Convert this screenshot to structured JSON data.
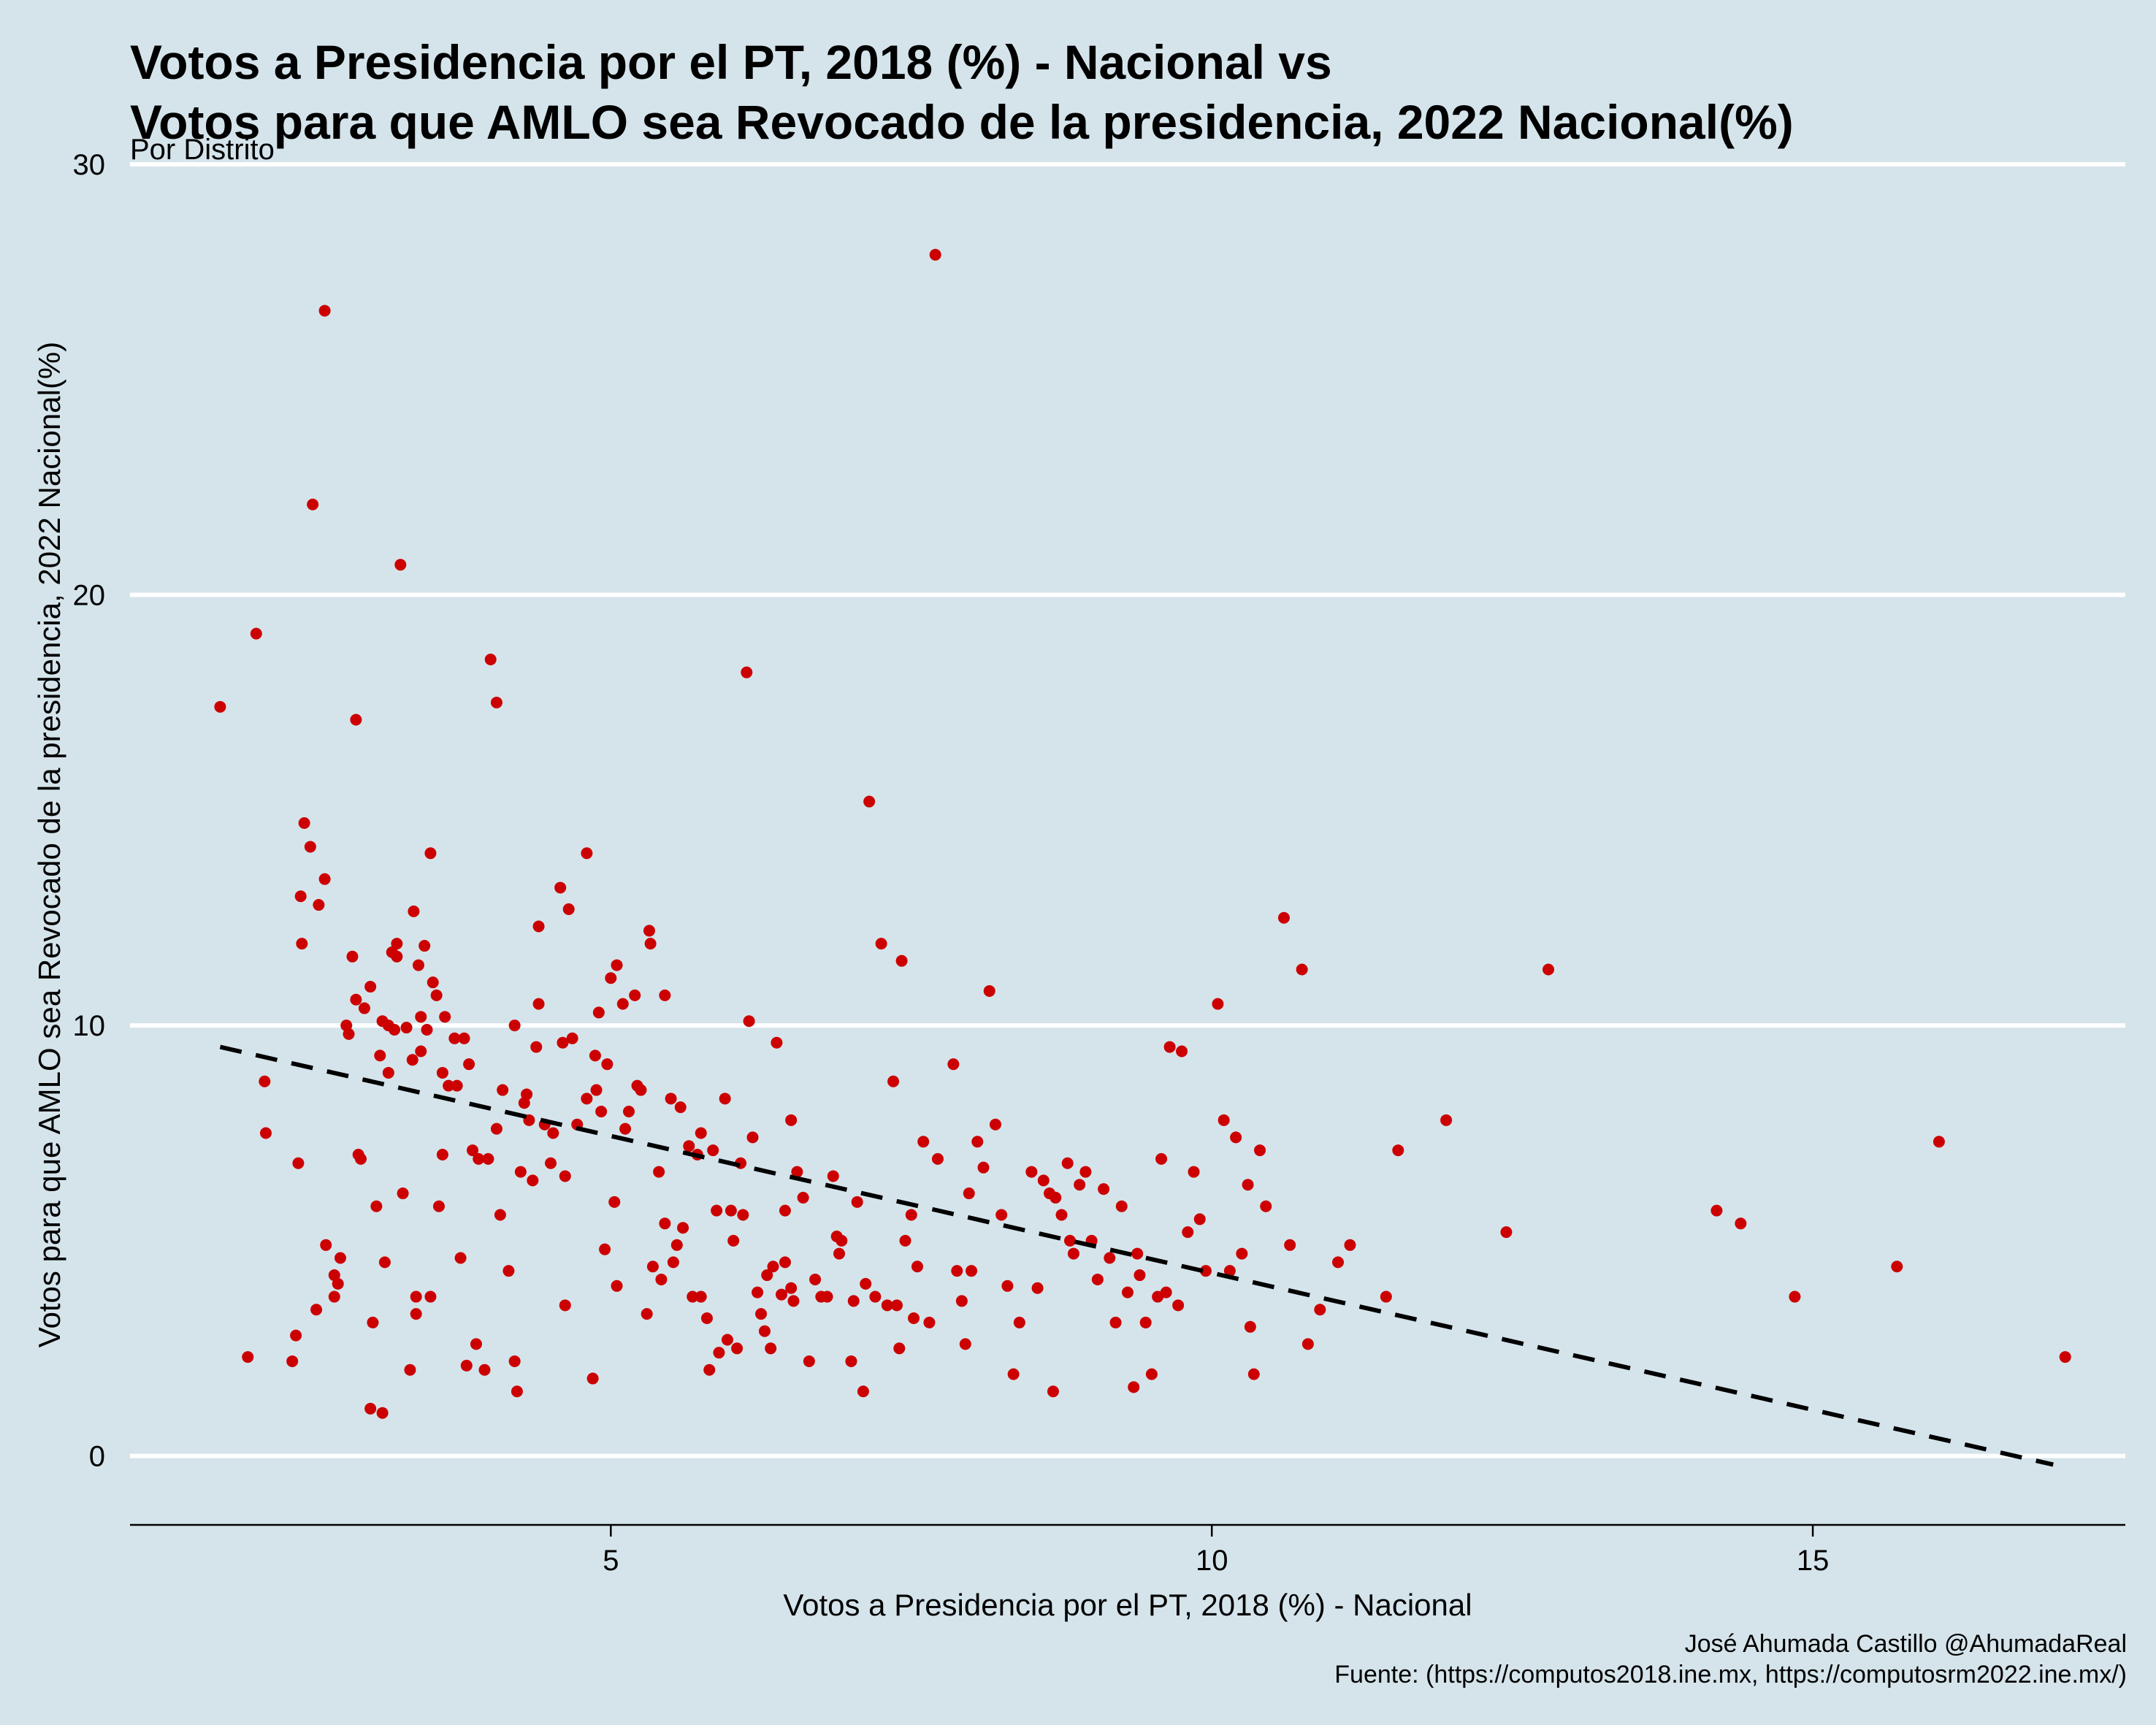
{
  "chart_data": {
    "type": "scatter",
    "title": [
      "Votos a Presidencia por el PT, 2018 (%) - Nacional vs",
      "Votos para que AMLO sea Revocado de la presidencia, 2022 Nacional(%)"
    ],
    "subtitle": "Por Distrito",
    "xlabel": "Votos a Presidencia por el PT, 2018 (%) - Nacional",
    "ylabel": "Votos para que AMLO sea Revocado de la presidencia, 2022 Nacional(%)",
    "xlim": [
      1,
      17.6
    ],
    "ylim": [
      -1.6,
      30
    ],
    "x_ticks": [
      5,
      10,
      15
    ],
    "y_ticks": [
      0,
      10,
      20,
      30
    ],
    "x_tick_labels": [
      "5",
      "10",
      "15"
    ],
    "y_tick_labels": [
      "0",
      "10",
      "20",
      "30"
    ],
    "grid": "horizontal-major",
    "point_color": "#cc0000",
    "trend_line": {
      "style": "dashed",
      "color": "#000000",
      "x": [
        1.75,
        17.0
      ],
      "y": [
        9.5,
        -0.2
      ]
    },
    "points": [
      [
        1.75,
        17.4
      ],
      [
        2.05,
        19.1
      ],
      [
        2.12,
        8.7
      ],
      [
        2.13,
        7.5
      ],
      [
        1.98,
        2.3
      ],
      [
        2.35,
        2.2
      ],
      [
        2.38,
        2.8
      ],
      [
        2.4,
        6.8
      ],
      [
        2.45,
        14.7
      ],
      [
        2.5,
        14.15
      ],
      [
        2.52,
        22.1
      ],
      [
        2.62,
        26.6
      ],
      [
        2.62,
        13.4
      ],
      [
        2.42,
        13.0
      ],
      [
        2.43,
        11.9
      ],
      [
        2.57,
        12.8
      ],
      [
        2.55,
        3.4
      ],
      [
        2.63,
        4.9
      ],
      [
        2.7,
        3.7
      ],
      [
        2.7,
        4.2
      ],
      [
        2.73,
        4.0
      ],
      [
        2.75,
        4.6
      ],
      [
        2.8,
        10.0
      ],
      [
        2.82,
        9.8
      ],
      [
        2.85,
        11.6
      ],
      [
        2.88,
        17.1
      ],
      [
        2.88,
        10.6
      ],
      [
        2.9,
        7.0
      ],
      [
        2.92,
        6.9
      ],
      [
        2.95,
        10.4
      ],
      [
        3.0,
        10.9
      ],
      [
        3.0,
        1.1
      ],
      [
        3.02,
        3.1
      ],
      [
        3.05,
        5.8
      ],
      [
        3.08,
        9.3
      ],
      [
        3.1,
        10.1
      ],
      [
        3.1,
        1.0
      ],
      [
        3.12,
        4.5
      ],
      [
        3.15,
        10.0
      ],
      [
        3.15,
        8.9
      ],
      [
        3.18,
        11.7
      ],
      [
        3.2,
        9.9
      ],
      [
        3.22,
        11.9
      ],
      [
        3.22,
        11.6
      ],
      [
        3.25,
        20.7
      ],
      [
        3.27,
        6.1
      ],
      [
        3.3,
        9.95
      ],
      [
        3.33,
        2.0
      ],
      [
        3.35,
        9.2
      ],
      [
        3.36,
        12.65
      ],
      [
        3.38,
        3.7
      ],
      [
        3.38,
        3.3
      ],
      [
        3.4,
        11.4
      ],
      [
        3.42,
        10.2
      ],
      [
        3.42,
        9.4
      ],
      [
        3.45,
        11.85
      ],
      [
        3.47,
        9.9
      ],
      [
        3.5,
        3.7
      ],
      [
        3.5,
        14.0
      ],
      [
        3.52,
        11.0
      ],
      [
        3.55,
        10.7
      ],
      [
        3.57,
        5.8
      ],
      [
        3.6,
        7.0
      ],
      [
        3.6,
        8.9
      ],
      [
        3.62,
        10.2
      ],
      [
        3.65,
        8.6
      ],
      [
        3.7,
        9.7
      ],
      [
        3.72,
        8.6
      ],
      [
        3.75,
        4.6
      ],
      [
        3.78,
        9.7
      ],
      [
        3.8,
        2.1
      ],
      [
        3.82,
        9.1
      ],
      [
        3.85,
        7.1
      ],
      [
        3.88,
        2.6
      ],
      [
        3.9,
        6.9
      ],
      [
        3.95,
        2.0
      ],
      [
        3.98,
        6.9
      ],
      [
        4.0,
        18.5
      ],
      [
        4.05,
        17.5
      ],
      [
        4.05,
        7.6
      ],
      [
        4.08,
        5.6
      ],
      [
        4.1,
        8.5
      ],
      [
        4.15,
        4.3
      ],
      [
        4.2,
        10.0
      ],
      [
        4.2,
        2.2
      ],
      [
        4.22,
        1.5
      ],
      [
        4.25,
        6.6
      ],
      [
        4.28,
        8.2
      ],
      [
        4.3,
        8.4
      ],
      [
        4.32,
        7.8
      ],
      [
        4.35,
        6.4
      ],
      [
        4.38,
        9.5
      ],
      [
        4.4,
        12.3
      ],
      [
        4.4,
        10.5
      ],
      [
        4.45,
        7.7
      ],
      [
        4.5,
        6.8
      ],
      [
        4.52,
        7.5
      ],
      [
        4.58,
        13.2
      ],
      [
        4.6,
        9.6
      ],
      [
        4.62,
        3.5
      ],
      [
        4.62,
        6.5
      ],
      [
        4.65,
        12.7
      ],
      [
        4.68,
        9.7
      ],
      [
        4.72,
        7.7
      ],
      [
        4.8,
        8.3
      ],
      [
        4.8,
        14.0
      ],
      [
        4.85,
        1.8
      ],
      [
        4.87,
        9.3
      ],
      [
        4.88,
        8.5
      ],
      [
        4.9,
        10.3
      ],
      [
        4.92,
        8.0
      ],
      [
        4.95,
        4.8
      ],
      [
        4.97,
        9.1
      ],
      [
        5.0,
        11.1
      ],
      [
        5.03,
        5.9
      ],
      [
        5.05,
        11.4
      ],
      [
        5.05,
        3.95
      ],
      [
        5.1,
        10.5
      ],
      [
        5.12,
        7.6
      ],
      [
        5.15,
        8.0
      ],
      [
        5.2,
        10.7
      ],
      [
        5.22,
        8.6
      ],
      [
        5.25,
        8.5
      ],
      [
        5.3,
        3.3
      ],
      [
        5.32,
        12.2
      ],
      [
        5.33,
        11.9
      ],
      [
        5.35,
        4.4
      ],
      [
        5.4,
        6.6
      ],
      [
        5.42,
        4.1
      ],
      [
        5.45,
        10.7
      ],
      [
        5.45,
        5.4
      ],
      [
        5.5,
        8.3
      ],
      [
        5.52,
        4.5
      ],
      [
        5.55,
        4.9
      ],
      [
        5.58,
        8.1
      ],
      [
        5.6,
        5.3
      ],
      [
        5.65,
        7.2
      ],
      [
        5.68,
        3.7
      ],
      [
        5.72,
        7.0
      ],
      [
        5.75,
        3.7
      ],
      [
        5.75,
        7.5
      ],
      [
        5.8,
        3.2
      ],
      [
        5.82,
        2.0
      ],
      [
        5.85,
        7.1
      ],
      [
        5.88,
        5.7
      ],
      [
        5.9,
        2.4
      ],
      [
        5.95,
        8.3
      ],
      [
        5.97,
        2.7
      ],
      [
        6.0,
        5.7
      ],
      [
        6.02,
        5.0
      ],
      [
        6.05,
        2.5
      ],
      [
        6.08,
        6.8
      ],
      [
        6.1,
        5.6
      ],
      [
        6.13,
        18.2
      ],
      [
        6.15,
        10.1
      ],
      [
        6.18,
        7.4
      ],
      [
        6.22,
        3.8
      ],
      [
        6.25,
        3.3
      ],
      [
        6.28,
        2.9
      ],
      [
        6.3,
        4.2
      ],
      [
        6.33,
        2.5
      ],
      [
        6.35,
        4.4
      ],
      [
        6.38,
        9.6
      ],
      [
        6.42,
        3.75
      ],
      [
        6.45,
        4.5
      ],
      [
        6.45,
        5.7
      ],
      [
        6.5,
        7.8
      ],
      [
        6.5,
        3.9
      ],
      [
        6.52,
        3.6
      ],
      [
        6.55,
        6.6
      ],
      [
        6.6,
        6.0
      ],
      [
        6.65,
        2.2
      ],
      [
        6.7,
        4.1
      ],
      [
        6.75,
        3.7
      ],
      [
        6.8,
        3.7
      ],
      [
        6.85,
        6.5
      ],
      [
        6.88,
        5.1
      ],
      [
        6.9,
        4.7
      ],
      [
        6.92,
        5.0
      ],
      [
        7.0,
        2.2
      ],
      [
        7.02,
        3.6
      ],
      [
        7.05,
        5.9
      ],
      [
        7.1,
        1.5
      ],
      [
        7.12,
        4.0
      ],
      [
        7.15,
        15.2
      ],
      [
        7.2,
        3.7
      ],
      [
        7.25,
        11.9
      ],
      [
        7.3,
        3.5
      ],
      [
        7.35,
        8.7
      ],
      [
        7.38,
        3.5
      ],
      [
        7.4,
        2.5
      ],
      [
        7.42,
        11.5
      ],
      [
        7.45,
        5.0
      ],
      [
        7.5,
        5.6
      ],
      [
        7.52,
        3.2
      ],
      [
        7.55,
        4.4
      ],
      [
        7.6,
        7.3
      ],
      [
        7.65,
        3.1
      ],
      [
        7.7,
        27.9
      ],
      [
        7.72,
        6.9
      ],
      [
        7.85,
        9.1
      ],
      [
        7.88,
        4.3
      ],
      [
        7.92,
        3.6
      ],
      [
        7.95,
        2.6
      ],
      [
        7.98,
        6.1
      ],
      [
        8.0,
        4.3
      ],
      [
        8.05,
        7.3
      ],
      [
        8.1,
        6.7
      ],
      [
        8.15,
        10.8
      ],
      [
        8.2,
        7.7
      ],
      [
        8.25,
        5.6
      ],
      [
        8.3,
        3.95
      ],
      [
        8.35,
        1.9
      ],
      [
        8.4,
        3.1
      ],
      [
        8.5,
        6.6
      ],
      [
        8.55,
        3.9
      ],
      [
        8.6,
        6.4
      ],
      [
        8.65,
        6.1
      ],
      [
        8.68,
        1.5
      ],
      [
        8.7,
        6.0
      ],
      [
        8.75,
        5.6
      ],
      [
        8.8,
        6.8
      ],
      [
        8.82,
        5.0
      ],
      [
        8.85,
        4.7
      ],
      [
        8.9,
        6.3
      ],
      [
        8.95,
        6.6
      ],
      [
        9.0,
        5.0
      ],
      [
        9.05,
        4.1
      ],
      [
        9.1,
        6.2
      ],
      [
        9.15,
        4.6
      ],
      [
        9.2,
        3.1
      ],
      [
        9.25,
        5.8
      ],
      [
        9.3,
        3.8
      ],
      [
        9.35,
        1.6
      ],
      [
        9.38,
        4.7
      ],
      [
        9.4,
        4.2
      ],
      [
        9.45,
        3.1
      ],
      [
        9.5,
        1.9
      ],
      [
        9.55,
        3.7
      ],
      [
        9.58,
        6.9
      ],
      [
        9.62,
        3.8
      ],
      [
        9.65,
        9.5
      ],
      [
        9.72,
        3.5
      ],
      [
        9.75,
        9.4
      ],
      [
        9.8,
        5.2
      ],
      [
        9.85,
        6.6
      ],
      [
        9.9,
        5.5
      ],
      [
        9.95,
        4.3
      ],
      [
        10.05,
        10.5
      ],
      [
        10.1,
        7.8
      ],
      [
        10.15,
        4.3
      ],
      [
        10.2,
        7.4
      ],
      [
        10.25,
        4.7
      ],
      [
        10.3,
        6.3
      ],
      [
        10.32,
        3.0
      ],
      [
        10.35,
        1.9
      ],
      [
        10.4,
        7.1
      ],
      [
        10.45,
        5.8
      ],
      [
        10.6,
        12.5
      ],
      [
        10.65,
        4.9
      ],
      [
        10.75,
        11.3
      ],
      [
        10.8,
        2.6
      ],
      [
        10.9,
        3.4
      ],
      [
        11.05,
        4.5
      ],
      [
        11.15,
        4.9
      ],
      [
        11.45,
        3.7
      ],
      [
        11.55,
        7.1
      ],
      [
        11.95,
        7.8
      ],
      [
        12.45,
        5.2
      ],
      [
        12.8,
        11.3
      ],
      [
        14.2,
        5.7
      ],
      [
        14.4,
        5.4
      ],
      [
        14.85,
        3.7
      ],
      [
        15.7,
        4.4
      ],
      [
        16.05,
        7.3
      ],
      [
        17.1,
        2.3
      ]
    ]
  },
  "caption": {
    "author": "José Ahumada Castillo @AhumadaReal",
    "source": "Fuente: (https://computos2018.ine.mx, https://computosrm2022.ine.mx/)"
  }
}
